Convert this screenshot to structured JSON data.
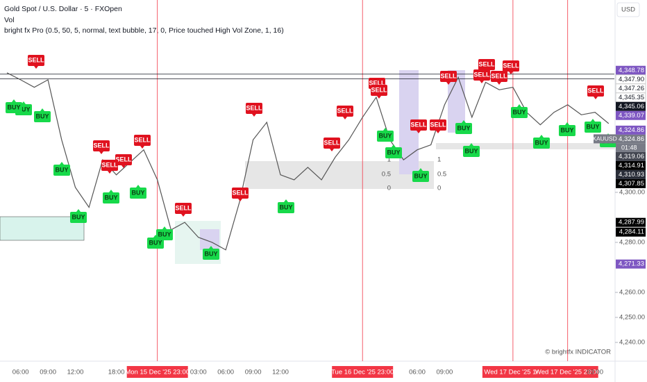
{
  "chart_data": {
    "type": "line",
    "title": "Gold Spot / U.S. Dollar · 5 · FXOpen",
    "subtitle": "Vol",
    "indicator": "bright fx Pro (0.5, 50, 5, normal, text bubble, 17, 0, Price touched High Vol Zone, 1, 16)",
    "currency": "USD",
    "watermark": "© brightfx INDICATOR",
    "symbol": "XAUUSD",
    "countdown": "01:48",
    "categories": [
      null,
      "06:00",
      null,
      "09:00",
      null,
      "12:00",
      null,
      null,
      "18:00",
      null,
      null,
      "Mon 15 Dec '25   23:00",
      null,
      null,
      "03:00",
      null,
      "06:00",
      null,
      "09:00",
      null,
      "12:00",
      null,
      null,
      null,
      null,
      null,
      "Tue 16 Dec '25   23:00",
      null,
      null,
      null,
      "06:00",
      null,
      "09:00",
      null,
      null,
      null,
      null,
      "Wed 17 Dec '25   16:",
      null,
      null,
      null,
      "Wed 17 Dec '25   23:00",
      null,
      "03:00",
      null
    ],
    "series": [
      {
        "name": "XAUUSD",
        "color": "#555555",
        "values": [
          4347.8,
          4345,
          4342,
          4345,
          4321,
          4302,
          4294,
          4313,
          4307,
          4312,
          4317,
          4305,
          4285,
          4288,
          4282,
          4280,
          4277,
          4296,
          4321,
          4328,
          4307,
          4305,
          4310,
          4305,
          4314,
          4321,
          4330,
          4338,
          4321,
          4313,
          4317,
          4319,
          4335,
          4346,
          4330,
          4344,
          4341,
          4342,
          4332,
          4327,
          4332,
          4335,
          4331,
          4332,
          4327.5
        ]
      }
    ],
    "ylim": [
      4232.5,
      4376.9
    ],
    "yticks": [
      {
        "value": 4240,
        "label": "4,240.00"
      },
      {
        "value": 4250,
        "label": "4,250.00"
      },
      {
        "value": 4260,
        "label": "4,260.00"
      },
      {
        "value": 4280,
        "label": "4,280.00"
      },
      {
        "value": 4300,
        "label": "4,300.00"
      }
    ],
    "price_labels": [
      {
        "value": 4348.78,
        "label": "4,348.78",
        "color": "#7e57c2"
      },
      {
        "value": 4347.9,
        "label": "4,347.90",
        "color": "#ffffff"
      },
      {
        "value": 4347.26,
        "label": "4,347.26",
        "color": "#ffffff"
      },
      {
        "value": 4345.35,
        "label": "4,345.35",
        "color": "#ffffff"
      },
      {
        "value": 4345.06,
        "label": "4,345.06",
        "color": "#131722"
      },
      {
        "value": 4339.07,
        "label": "4,339.07",
        "color": "#7e57c2"
      },
      {
        "value": 4324.86,
        "label": "4,324.86",
        "color": "#7e57c2"
      },
      {
        "value": 4324.86,
        "label": "4,324.86",
        "color": "#787b86"
      },
      {
        "value": 4319.06,
        "label": "4,319.06",
        "color": "#434651"
      },
      {
        "value": 4314.91,
        "label": "4,314.91",
        "color": "#000000"
      },
      {
        "value": 4310.93,
        "label": "4,310.93",
        "color": "#2a2e39"
      },
      {
        "value": 4307.85,
        "label": "4,307.85",
        "color": "#000000"
      },
      {
        "value": 4287.99,
        "label": "4,287.99",
        "color": "#000000"
      },
      {
        "value": 4284.11,
        "label": "4,284.11",
        "color": "#000000"
      },
      {
        "value": 4271.33,
        "label": "4,271.33",
        "color": "#7e57c2"
      }
    ],
    "signals": [
      "SELL",
      "BUY",
      "BUY",
      "BUY",
      "BUY",
      "BUY",
      "SELL",
      "SELL",
      "SELL",
      "BUY",
      "SELL",
      "BUY",
      "SELL",
      "BUY",
      "BUY",
      "BUY",
      "SELL",
      "SELL",
      "BUY",
      "SELL",
      "SELL",
      "SELL",
      "SELL",
      "BUY",
      "BUY",
      "SELL",
      "SELL",
      "BUY",
      "SELL",
      "SELL",
      "SELL",
      "SELL",
      "SELL",
      "BUY",
      "BUY",
      "BUY",
      "BUY",
      "BUY",
      "BUY",
      "BUY",
      "SELL"
    ],
    "fib_levels": [
      1,
      0.5,
      0
    ]
  }
}
